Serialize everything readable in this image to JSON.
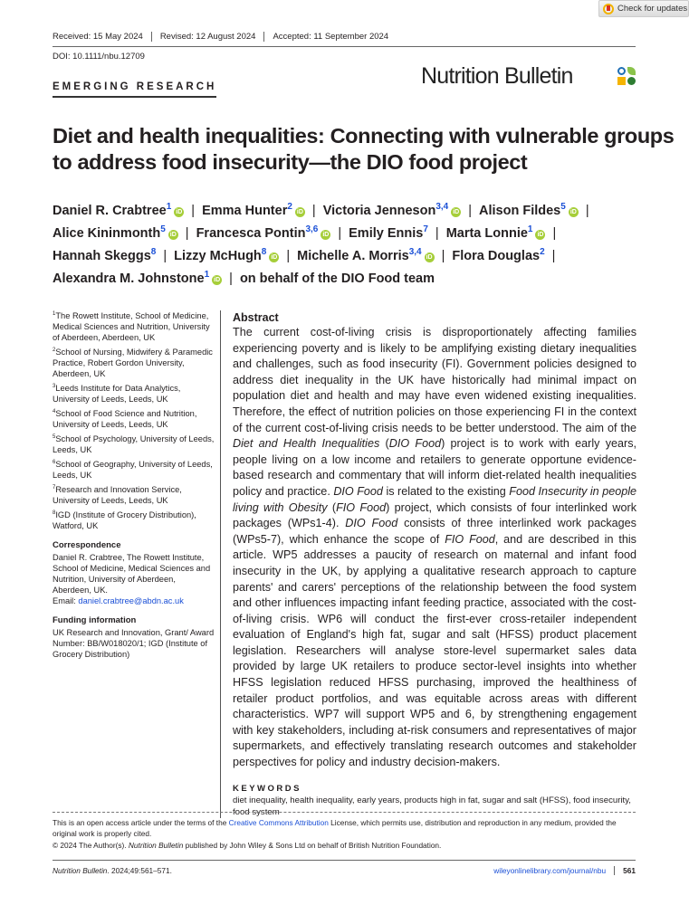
{
  "check_updates": "Check for updates",
  "dates": [
    "Received: 15 May 2024",
    "Revised: 12 August 2024",
    "Accepted: 11 September 2024"
  ],
  "doi": "DOI: 10.1111/nbu.12709",
  "section": "EMERGING RESEARCH",
  "journal": "Nutrition Bulletin",
  "logo_colors": [
    "#1f6fb5",
    "#8bc34a",
    "#f5b400",
    "#2e7d32"
  ],
  "title": "Diet and health inequalities: Connecting with vulnerable groups to address food insecurity—the DIO food project",
  "authors": [
    {
      "name": "Daniel R. Crabtree",
      "aff": "1",
      "orcid": true
    },
    {
      "name": "Emma Hunter",
      "aff": "2",
      "orcid": true
    },
    {
      "name": "Victoria Jenneson",
      "aff": "3,4",
      "orcid": true
    },
    {
      "name": "Alison Fildes",
      "aff": "5",
      "orcid": true
    },
    {
      "name": "Alice Kininmonth",
      "aff": "5",
      "orcid": true
    },
    {
      "name": "Francesca Pontin",
      "aff": "3,6",
      "orcid": true
    },
    {
      "name": "Emily Ennis",
      "aff": "7",
      "orcid": false
    },
    {
      "name": "Marta Lonnie",
      "aff": "1",
      "orcid": true
    },
    {
      "name": "Hannah Skeggs",
      "aff": "8",
      "orcid": false
    },
    {
      "name": "Lizzy McHugh",
      "aff": "8",
      "orcid": true
    },
    {
      "name": "Michelle A. Morris",
      "aff": "3,4",
      "orcid": true
    },
    {
      "name": "Flora Douglas",
      "aff": "2",
      "orcid": false
    },
    {
      "name": "Alexandra M. Johnstone",
      "aff": "1",
      "orcid": true
    }
  ],
  "author_line_breaks_after": [
    3,
    7,
    11
  ],
  "on_behalf": "on behalf of the DIO Food team",
  "affiliations": [
    {
      "num": "1",
      "text": "The Rowett Institute, School of Medicine, Medical Sciences and Nutrition, University of Aberdeen, Aberdeen, UK"
    },
    {
      "num": "2",
      "text": "School of Nursing, Midwifery & Paramedic Practice, Robert Gordon University, Aberdeen, UK"
    },
    {
      "num": "3",
      "text": "Leeds Institute for Data Analytics, University of Leeds, Leeds, UK"
    },
    {
      "num": "4",
      "text": "School of Food Science and Nutrition, University of Leeds, Leeds, UK"
    },
    {
      "num": "5",
      "text": "School of Psychology, University of Leeds, Leeds, UK"
    },
    {
      "num": "6",
      "text": "School of Geography, University of Leeds, Leeds, UK"
    },
    {
      "num": "7",
      "text": "Research and Innovation Service, University of Leeds, Leeds, UK"
    },
    {
      "num": "8",
      "text": "IGD (Institute of Grocery Distribution), Watford, UK"
    }
  ],
  "correspondence": {
    "heading": "Correspondence",
    "text": "Daniel R. Crabtree, The Rowett Institute, School of Medicine, Medical Sciences and Nutrition, University of Aberdeen, Aberdeen, UK.",
    "email_label": "Email: ",
    "email": "daniel.crabtree@abdn.ac.uk"
  },
  "funding": {
    "heading": "Funding information",
    "text": "UK Research and Innovation, Grant/ Award Number: BB/W018020/1; IGD (Institute of Grocery Distribution)"
  },
  "abstract": {
    "heading": "Abstract",
    "segments": [
      {
        "t": "The current cost-of-living crisis is disproportionately affecting families experiencing poverty and is likely to be amplifying existing dietary inequalities and challenges, such as food insecurity (FI). Government policies designed to address diet inequality in the UK have historically had minimal impact on population diet and health and may have even widened existing inequalities. Therefore, the effect of nutrition policies on those experiencing FI in the context of the current cost-of-living crisis needs to be better understood. The aim of the ",
        "i": false
      },
      {
        "t": "Diet and Health Inequalities",
        "i": true
      },
      {
        "t": " (",
        "i": false
      },
      {
        "t": "DIO Food",
        "i": true
      },
      {
        "t": ") project is to work with early years, people living on a low income and retailers to generate opportune evidence-based research and commentary that will inform diet-related health inequalities policy and practice. ",
        "i": false
      },
      {
        "t": "DIO Food",
        "i": true
      },
      {
        "t": " is related to the existing ",
        "i": false
      },
      {
        "t": "Food Insecurity in people living with Obesity",
        "i": true
      },
      {
        "t": " (",
        "i": false
      },
      {
        "t": "FIO Food",
        "i": true
      },
      {
        "t": ") project, which consists of four interlinked work packages (WPs1-4). ",
        "i": false
      },
      {
        "t": "DIO Food",
        "i": true
      },
      {
        "t": " consists of three interlinked work packages (WPs5-7), which enhance the scope of ",
        "i": false
      },
      {
        "t": "FIO Food",
        "i": true
      },
      {
        "t": ", and are described in this article. WP5 addresses a paucity of research on maternal and infant food insecurity in the UK, by applying a qualitative research approach to capture parents' and carers' perceptions of the relationship between the food system and other influences impacting infant feeding practice, associated with the cost-of-living crisis. WP6 will conduct the first-ever cross-retailer independent evaluation of England's high fat, sugar and salt (HFSS) product placement legislation. Researchers will analyse store-level supermarket sales data provided by large UK retailers to produce sector-level insights into whether HFSS legislation reduced HFSS purchasing, improved the healthiness of retailer product portfolios, and was equitable across areas with different characteristics. WP7 will support WP5 and 6, by strengthening engagement with key stakeholders, including at-risk consumers and representatives of major supermarkets, and effectively translating research outcomes and stakeholder perspectives for policy and industry decision-makers.",
        "i": false
      }
    ]
  },
  "keywords": {
    "heading": "KEYWORDS",
    "text": "diet inequality, health inequality, early years, products high in fat, sugar and salt (HFSS), food insecurity, food system"
  },
  "license": {
    "pre": "This is an open access article under the terms of the ",
    "link": "Creative Commons Attribution",
    "post": " License, which permits use, distribution and reproduction in any medium, provided the original work is properly cited.",
    "copyright_pre": "© 2024 The Author(s). ",
    "copyright_journal": "Nutrition Bulletin",
    "copyright_post": " published by John Wiley & Sons Ltd on behalf of British Nutrition Foundation."
  },
  "footer": {
    "journal": "Nutrition Bulletin",
    "citation": ". 2024;49:561–571.",
    "url": "wileyonlinelibrary.com/journal/nbu",
    "page": "561"
  }
}
